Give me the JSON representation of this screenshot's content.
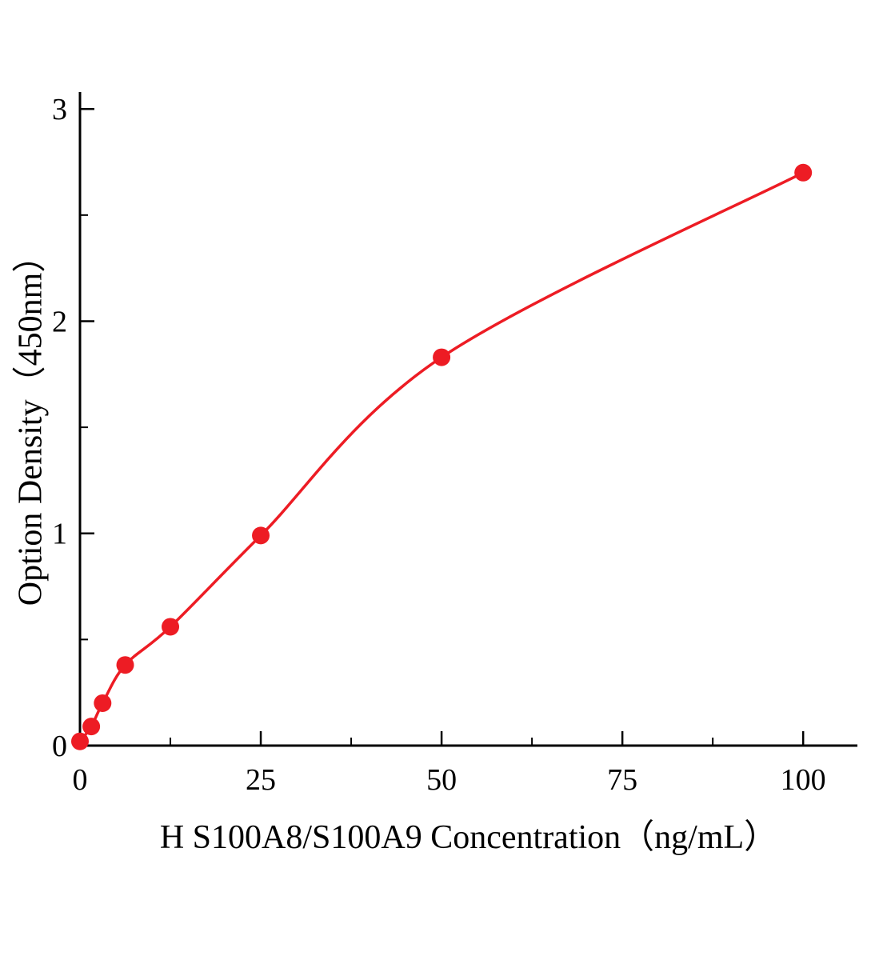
{
  "page": {
    "background": "#ffffff"
  },
  "chart_data": {
    "type": "scatter",
    "title": "",
    "xlabel": "H S100A8/S100A9 Concentration（ng/mL）",
    "ylabel": "Option Density（450nm）",
    "x": [
      0,
      1.56,
      3.13,
      6.25,
      12.5,
      25,
      50,
      100
    ],
    "y": [
      0.02,
      0.09,
      0.2,
      0.38,
      0.56,
      0.99,
      1.83,
      2.7
    ],
    "fit_curve": true,
    "xlim": [
      0,
      107.5
    ],
    "ylim": [
      0,
      3.08
    ],
    "x_ticks": [
      0,
      25,
      50,
      75,
      100
    ],
    "x_minor_ticks": [
      12.5,
      37.5,
      62.5,
      87.5
    ],
    "y_ticks": [
      0,
      1,
      2,
      3
    ],
    "y_minor_ticks": [
      0.5,
      1.5,
      2.5
    ],
    "grid": false,
    "legend": false,
    "marker_color": "#ed1c24",
    "line_color": "#ed1c24",
    "axis_color": "#000000",
    "tick_label_color": "#000000"
  }
}
